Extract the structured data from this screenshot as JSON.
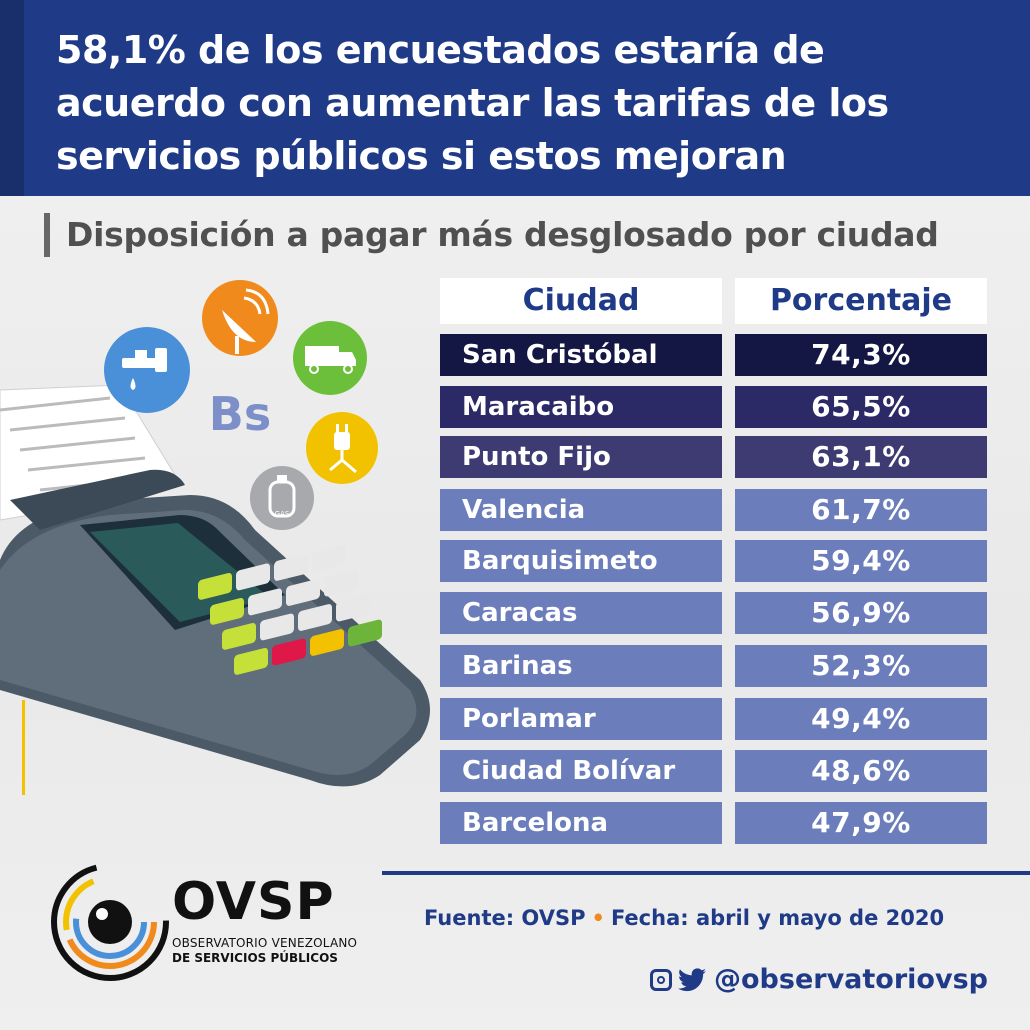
{
  "headline": "58,1% de los encuestados estaría de acuerdo con aumentar las tarifas de los servicios públicos si estos mejoran",
  "subtitle": "Disposición a pagar más desglosado por ciudad",
  "table": {
    "headers": [
      "Ciudad",
      "Porcentaje"
    ],
    "rows": [
      {
        "city": "San Cristóbal",
        "pct": "74,3%"
      },
      {
        "city": "Maracaibo",
        "pct": "65,5%"
      },
      {
        "city": "Punto Fijo",
        "pct": "63,1%"
      },
      {
        "city": "Valencia",
        "pct": "61,7%"
      },
      {
        "city": "Barquisimeto",
        "pct": "59,4%"
      },
      {
        "city": "Caracas",
        "pct": "56,9%"
      },
      {
        "city": "Barinas",
        "pct": "52,3%"
      },
      {
        "city": "Porlamar",
        "pct": "49,4%"
      },
      {
        "city": "Ciudad Bolívar",
        "pct": "48,6%"
      },
      {
        "city": "Barcelona",
        "pct": "47,9%"
      }
    ],
    "row_colors": [
      "#141743",
      "#2c2a66",
      "#3e3a72",
      "#6b7dba",
      "#6b7dba",
      "#6b7dba",
      "#6b7dba",
      "#6b7dba",
      "#6b7dba",
      "#6b7dba"
    ]
  },
  "illustration": {
    "currency_label": "Bs",
    "gas_label": "GAS",
    "icons": [
      "water-tap-icon",
      "satellite-dish-icon",
      "garbage-truck-icon",
      "electric-plug-icon",
      "gas-cylinder-icon"
    ]
  },
  "footer": {
    "source": "Fuente: OVSP",
    "date": "Fecha: abril y mayo de 2020",
    "social_handle": "@observatoriovsp"
  },
  "logo": {
    "name": "OVSP",
    "line1": "OBSERVATORIO VENEZOLANO",
    "line2": "DE SERVICIOS PÚBLICOS"
  },
  "colors": {
    "header": "#1f3a86",
    "accent_orange": "#f08a1c"
  }
}
